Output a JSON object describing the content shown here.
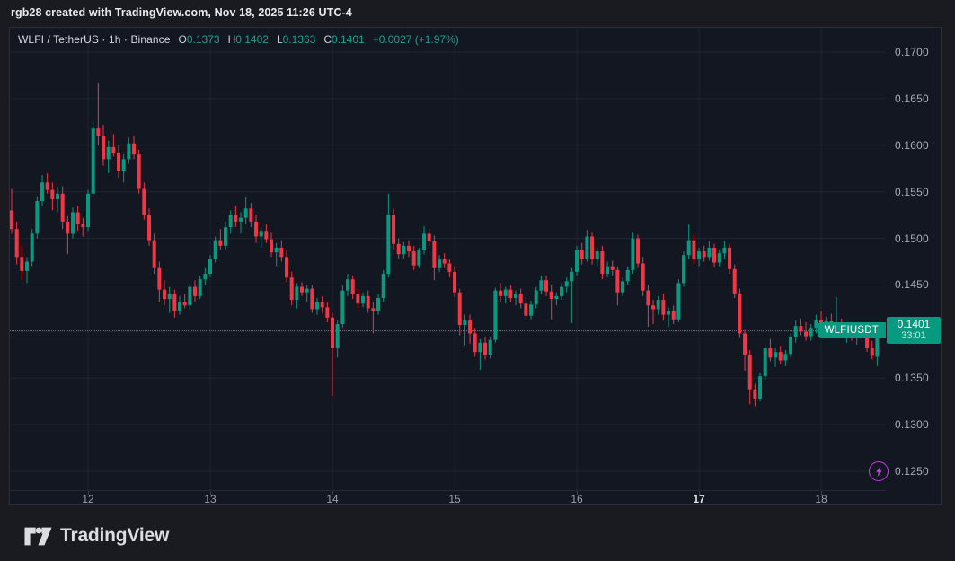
{
  "attribution": "rgb28 created with TradingView.com, Nov 18, 2025 11:26 UTC-4",
  "legend": {
    "title": "WLFI / TetherUS · 1h · Binance",
    "ohlc": [
      {
        "label": "O",
        "value": "0.1373"
      },
      {
        "label": "H",
        "value": "0.1402"
      },
      {
        "label": "L",
        "value": "0.1363"
      },
      {
        "label": "C",
        "value": "0.1401"
      }
    ],
    "change": "+0.0027 (+1.97%)"
  },
  "price_line": {
    "symbol": "WLFIUSDT",
    "price": 0.1401,
    "label": "0.1401",
    "countdown": "33:01"
  },
  "flash_icon": {
    "at_price": 0.125
  },
  "footer": {
    "brand": "TradingView"
  },
  "colors": {
    "up": "#089981",
    "down": "#f23645",
    "background": "#131722",
    "grid": "rgba(163,175,205,0.08)",
    "accent_purple": "#c43ae0"
  },
  "chart_data": {
    "type": "candlestick",
    "title": "WLFI / TetherUS · 1h · Binance",
    "symbol": "WLFIUSDT",
    "interval": "1h",
    "exchange": "Binance",
    "last": {
      "open": 0.1373,
      "high": 0.1402,
      "low": 0.1363,
      "close": 0.1401,
      "change": "+0.0027 (+1.97%)"
    },
    "ylim": [
      0.125,
      0.17
    ],
    "grid": true,
    "price_axis_ticks": [
      {
        "label": "0.1700",
        "value": 0.17
      },
      {
        "label": "0.1650",
        "value": 0.165
      },
      {
        "label": "0.1600",
        "value": 0.16
      },
      {
        "label": "0.1550",
        "value": 0.155
      },
      {
        "label": "0.1500",
        "value": 0.15
      },
      {
        "label": "0.1450",
        "value": 0.145
      },
      {
        "label": "0.1400",
        "value": 0.14
      },
      {
        "label": "0.1350",
        "value": 0.135
      },
      {
        "label": "0.1300",
        "value": 0.13
      },
      {
        "label": "0.1250",
        "value": 0.125
      }
    ],
    "time_axis_ticks": [
      {
        "label": "12",
        "index": 15,
        "strong": false
      },
      {
        "label": "13",
        "index": 39,
        "strong": false
      },
      {
        "label": "14",
        "index": 63,
        "strong": false
      },
      {
        "label": "15",
        "index": 87,
        "strong": false
      },
      {
        "label": "16",
        "index": 111,
        "strong": false
      },
      {
        "label": "17",
        "index": 135,
        "strong": true
      },
      {
        "label": "18",
        "index": 159,
        "strong": false
      }
    ],
    "candles_format": [
      "open",
      "high",
      "low",
      "close"
    ],
    "candles": [
      [
        0.153,
        0.1553,
        0.1505,
        0.151
      ],
      [
        0.151,
        0.1518,
        0.1472,
        0.148
      ],
      [
        0.148,
        0.1492,
        0.1455,
        0.1465
      ],
      [
        0.1465,
        0.148,
        0.1452,
        0.1475
      ],
      [
        0.1475,
        0.151,
        0.147,
        0.1505
      ],
      [
        0.1505,
        0.1545,
        0.15,
        0.154
      ],
      [
        0.154,
        0.1568,
        0.1535,
        0.156
      ],
      [
        0.156,
        0.157,
        0.1548,
        0.1552
      ],
      [
        0.1552,
        0.156,
        0.153,
        0.1542
      ],
      [
        0.1542,
        0.1555,
        0.1528,
        0.1548
      ],
      [
        0.1548,
        0.1556,
        0.151,
        0.1518
      ],
      [
        0.1518,
        0.1524,
        0.1483,
        0.1505
      ],
      [
        0.1505,
        0.1533,
        0.15,
        0.1528
      ],
      [
        0.1528,
        0.1535,
        0.1508,
        0.1515
      ],
      [
        0.1515,
        0.1522,
        0.1502,
        0.1512
      ],
      [
        0.1512,
        0.1552,
        0.1508,
        0.1548
      ],
      [
        0.1548,
        0.1625,
        0.1545,
        0.1618
      ],
      [
        0.1618,
        0.1667,
        0.16,
        0.161
      ],
      [
        0.161,
        0.1622,
        0.1578,
        0.1585
      ],
      [
        0.1585,
        0.1605,
        0.157,
        0.1598
      ],
      [
        0.1598,
        0.1612,
        0.1588,
        0.1592
      ],
      [
        0.1592,
        0.16,
        0.1565,
        0.1572
      ],
      [
        0.1572,
        0.159,
        0.156,
        0.1585
      ],
      [
        0.1585,
        0.1608,
        0.158,
        0.1602
      ],
      [
        0.1602,
        0.161,
        0.1585,
        0.159
      ],
      [
        0.159,
        0.1595,
        0.1548,
        0.1553
      ],
      [
        0.1553,
        0.156,
        0.152,
        0.1525
      ],
      [
        0.1525,
        0.1532,
        0.1492,
        0.1498
      ],
      [
        0.1498,
        0.1505,
        0.1462,
        0.1468
      ],
      [
        0.1468,
        0.1475,
        0.1432,
        0.1445
      ],
      [
        0.1445,
        0.1455,
        0.1428,
        0.1435
      ],
      [
        0.1435,
        0.1448,
        0.142,
        0.144
      ],
      [
        0.144,
        0.1445,
        0.1415,
        0.1422
      ],
      [
        0.1422,
        0.1438,
        0.1418,
        0.1432
      ],
      [
        0.1432,
        0.144,
        0.1425,
        0.1428
      ],
      [
        0.1428,
        0.1452,
        0.1424,
        0.1448
      ],
      [
        0.1448,
        0.1455,
        0.1432,
        0.1438
      ],
      [
        0.1438,
        0.146,
        0.1435,
        0.1456
      ],
      [
        0.1456,
        0.1468,
        0.145,
        0.1462
      ],
      [
        0.1462,
        0.1482,
        0.1458,
        0.1478
      ],
      [
        0.1478,
        0.1502,
        0.1474,
        0.1498
      ],
      [
        0.1498,
        0.151,
        0.1488,
        0.1492
      ],
      [
        0.1492,
        0.1518,
        0.1488,
        0.1512
      ],
      [
        0.1512,
        0.153,
        0.1505,
        0.1525
      ],
      [
        0.1525,
        0.1535,
        0.1512,
        0.1518
      ],
      [
        0.1518,
        0.1528,
        0.1505,
        0.1522
      ],
      [
        0.1522,
        0.1544,
        0.1515,
        0.1532
      ],
      [
        0.1532,
        0.1538,
        0.1512,
        0.1518
      ],
      [
        0.1518,
        0.1525,
        0.1495,
        0.1502
      ],
      [
        0.1502,
        0.1512,
        0.149,
        0.1508
      ],
      [
        0.1508,
        0.1515,
        0.1495,
        0.1499
      ],
      [
        0.1499,
        0.1506,
        0.148,
        0.1485
      ],
      [
        0.1485,
        0.1495,
        0.147,
        0.149
      ],
      [
        0.149,
        0.1498,
        0.1475,
        0.148
      ],
      [
        0.148,
        0.1488,
        0.1453,
        0.1458
      ],
      [
        0.1458,
        0.1464,
        0.1428,
        0.1434
      ],
      [
        0.1434,
        0.1452,
        0.1425,
        0.1448
      ],
      [
        0.1448,
        0.1453,
        0.1438,
        0.1442
      ],
      [
        0.1442,
        0.145,
        0.1432,
        0.1446
      ],
      [
        0.1446,
        0.145,
        0.142,
        0.1424
      ],
      [
        0.1424,
        0.1436,
        0.1418,
        0.1432
      ],
      [
        0.1432,
        0.1438,
        0.142,
        0.1426
      ],
      [
        0.1426,
        0.1432,
        0.141,
        0.1415
      ],
      [
        0.1415,
        0.142,
        0.1331,
        0.1382
      ],
      [
        0.1382,
        0.1412,
        0.1372,
        0.1408
      ],
      [
        0.1408,
        0.145,
        0.1404,
        0.1444
      ],
      [
        0.1444,
        0.1462,
        0.1438,
        0.1456
      ],
      [
        0.1456,
        0.146,
        0.1435,
        0.144
      ],
      [
        0.144,
        0.1446,
        0.1425,
        0.143
      ],
      [
        0.143,
        0.1442,
        0.1426,
        0.1438
      ],
      [
        0.1438,
        0.1444,
        0.142,
        0.1425
      ],
      [
        0.1425,
        0.1432,
        0.1398,
        0.1422
      ],
      [
        0.1422,
        0.144,
        0.1418,
        0.1436
      ],
      [
        0.1436,
        0.1466,
        0.1432,
        0.1462
      ],
      [
        0.1462,
        0.1548,
        0.1458,
        0.1525
      ],
      [
        0.1525,
        0.1532,
        0.1488,
        0.1494
      ],
      [
        0.1494,
        0.15,
        0.1478,
        0.1483
      ],
      [
        0.1483,
        0.1496,
        0.1478,
        0.1492
      ],
      [
        0.1492,
        0.1498,
        0.148,
        0.1486
      ],
      [
        0.1486,
        0.1492,
        0.1466,
        0.1471
      ],
      [
        0.1471,
        0.149,
        0.1468,
        0.1487
      ],
      [
        0.1487,
        0.1513,
        0.1483,
        0.1505
      ],
      [
        0.1505,
        0.151,
        0.1492,
        0.1497
      ],
      [
        0.1497,
        0.1503,
        0.1455,
        0.1468
      ],
      [
        0.1468,
        0.1482,
        0.1464,
        0.1478
      ],
      [
        0.1478,
        0.1484,
        0.1468,
        0.1473
      ],
      [
        0.1473,
        0.1478,
        0.1458,
        0.1464
      ],
      [
        0.1464,
        0.147,
        0.1437,
        0.1442
      ],
      [
        0.1442,
        0.1446,
        0.1396,
        0.1407
      ],
      [
        0.1407,
        0.1418,
        0.1385,
        0.1412
      ],
      [
        0.1412,
        0.1418,
        0.1387,
        0.1398
      ],
      [
        0.1398,
        0.1404,
        0.1373,
        0.1378
      ],
      [
        0.1378,
        0.1392,
        0.1359,
        0.1388
      ],
      [
        0.1388,
        0.1394,
        0.137,
        0.1375
      ],
      [
        0.1375,
        0.1394,
        0.1371,
        0.1391
      ],
      [
        0.1391,
        0.1447,
        0.1388,
        0.1444
      ],
      [
        0.1444,
        0.1452,
        0.1432,
        0.1438
      ],
      [
        0.1438,
        0.1448,
        0.143,
        0.1445
      ],
      [
        0.1445,
        0.145,
        0.1432,
        0.1436
      ],
      [
        0.1436,
        0.1444,
        0.1428,
        0.144
      ],
      [
        0.144,
        0.1446,
        0.1425,
        0.143
      ],
      [
        0.143,
        0.1437,
        0.1412,
        0.1417
      ],
      [
        0.1417,
        0.1433,
        0.1413,
        0.1429
      ],
      [
        0.1429,
        0.1448,
        0.1425,
        0.1444
      ],
      [
        0.1444,
        0.146,
        0.144,
        0.1455
      ],
      [
        0.1455,
        0.146,
        0.1438,
        0.1443
      ],
      [
        0.1443,
        0.145,
        0.1413,
        0.1435
      ],
      [
        0.1435,
        0.1442,
        0.1428,
        0.1438
      ],
      [
        0.1438,
        0.1452,
        0.1434,
        0.1448
      ],
      [
        0.1448,
        0.1458,
        0.1442,
        0.1454
      ],
      [
        0.1454,
        0.1468,
        0.1409,
        0.1464
      ],
      [
        0.1464,
        0.1492,
        0.146,
        0.1488
      ],
      [
        0.1488,
        0.1495,
        0.1472,
        0.1478
      ],
      [
        0.1478,
        0.1509,
        0.1475,
        0.1502
      ],
      [
        0.1502,
        0.1506,
        0.1472,
        0.1478
      ],
      [
        0.1478,
        0.149,
        0.147,
        0.1486
      ],
      [
        0.1486,
        0.1492,
        0.1456,
        0.1462
      ],
      [
        0.1462,
        0.1475,
        0.1458,
        0.147
      ],
      [
        0.147,
        0.1476,
        0.146,
        0.1466
      ],
      [
        0.1466,
        0.147,
        0.1428,
        0.1442
      ],
      [
        0.1442,
        0.1458,
        0.1438,
        0.1454
      ],
      [
        0.1454,
        0.147,
        0.145,
        0.1466
      ],
      [
        0.1466,
        0.1506,
        0.1462,
        0.15
      ],
      [
        0.15,
        0.1504,
        0.1468,
        0.1473
      ],
      [
        0.1473,
        0.148,
        0.1438,
        0.1444
      ],
      [
        0.1444,
        0.145,
        0.1405,
        0.1428
      ],
      [
        0.1428,
        0.1434,
        0.1408,
        0.1424
      ],
      [
        0.1424,
        0.1438,
        0.1418,
        0.1434
      ],
      [
        0.1434,
        0.144,
        0.1412,
        0.1418
      ],
      [
        0.1418,
        0.1426,
        0.1405,
        0.1422
      ],
      [
        0.1422,
        0.1428,
        0.1408,
        0.1413
      ],
      [
        0.1413,
        0.1456,
        0.141,
        0.1452
      ],
      [
        0.1452,
        0.1486,
        0.1448,
        0.1482
      ],
      [
        0.1482,
        0.1515,
        0.1478,
        0.1498
      ],
      [
        0.1498,
        0.1504,
        0.1472,
        0.1478
      ],
      [
        0.1478,
        0.149,
        0.147,
        0.1486
      ],
      [
        0.1486,
        0.1492,
        0.1475,
        0.148
      ],
      [
        0.148,
        0.1497,
        0.1476,
        0.149
      ],
      [
        0.149,
        0.1494,
        0.1469,
        0.1474
      ],
      [
        0.1474,
        0.1488,
        0.147,
        0.1484
      ],
      [
        0.1484,
        0.1497,
        0.1478,
        0.149
      ],
      [
        0.149,
        0.1494,
        0.1462,
        0.1467
      ],
      [
        0.1467,
        0.1472,
        0.1436,
        0.1441
      ],
      [
        0.1441,
        0.1446,
        0.1393,
        0.1398
      ],
      [
        0.1398,
        0.1402,
        0.1358,
        0.1375
      ],
      [
        0.1375,
        0.138,
        0.1322,
        0.1338
      ],
      [
        0.1338,
        0.1344,
        0.132,
        0.1328
      ],
      [
        0.1328,
        0.1356,
        0.1325,
        0.1352
      ],
      [
        0.1352,
        0.1386,
        0.1348,
        0.1382
      ],
      [
        0.1382,
        0.1392,
        0.1368,
        0.1372
      ],
      [
        0.1372,
        0.1382,
        0.1362,
        0.1378
      ],
      [
        0.1378,
        0.1384,
        0.1365,
        0.1369
      ],
      [
        0.1369,
        0.138,
        0.1363,
        0.1376
      ],
      [
        0.1376,
        0.1398,
        0.1372,
        0.1394
      ],
      [
        0.1394,
        0.1412,
        0.1388,
        0.1406
      ],
      [
        0.1406,
        0.1414,
        0.1396,
        0.14
      ],
      [
        0.14,
        0.141,
        0.139,
        0.1395
      ],
      [
        0.1395,
        0.1408,
        0.139,
        0.1404
      ],
      [
        0.1404,
        0.1418,
        0.1398,
        0.1412
      ],
      [
        0.1412,
        0.1422,
        0.1402,
        0.1407
      ],
      [
        0.1407,
        0.1416,
        0.1398,
        0.1411
      ],
      [
        0.1411,
        0.1419,
        0.14,
        0.1404
      ],
      [
        0.1404,
        0.1437,
        0.1398,
        0.1408
      ],
      [
        0.1408,
        0.1414,
        0.1394,
        0.1398
      ],
      [
        0.1398,
        0.1406,
        0.1388,
        0.1402
      ],
      [
        0.1402,
        0.1408,
        0.139,
        0.1394
      ],
      [
        0.1394,
        0.1404,
        0.1386,
        0.1399
      ],
      [
        0.1399,
        0.1406,
        0.139,
        0.1395
      ],
      [
        0.1395,
        0.14,
        0.1378,
        0.1382
      ],
      [
        0.1382,
        0.139,
        0.137,
        0.1374
      ],
      [
        0.1373,
        0.1402,
        0.1363,
        0.1401
      ]
    ]
  }
}
